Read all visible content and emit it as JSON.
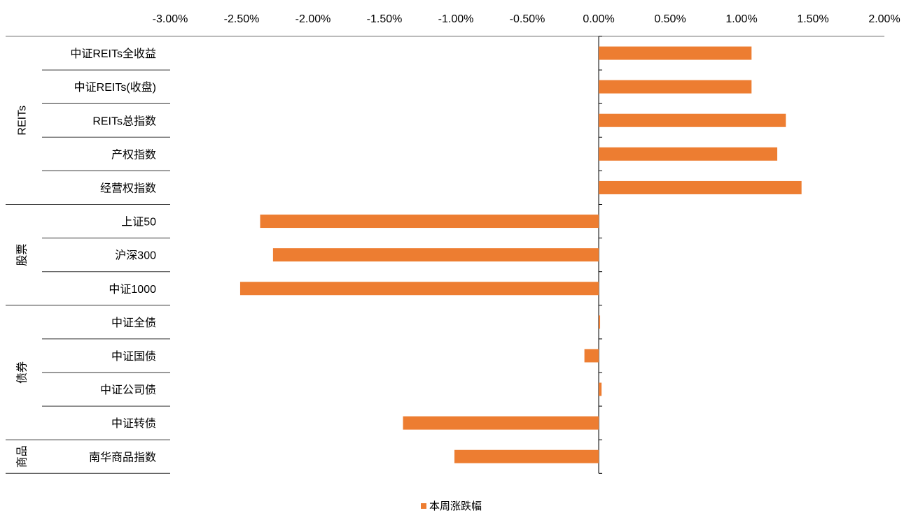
{
  "chart_data": {
    "type": "bar",
    "orientation": "horizontal",
    "x_ticks": [
      "-3.00%",
      "-2.50%",
      "-2.00%",
      "-1.50%",
      "-1.00%",
      "-0.50%",
      "0.00%",
      "0.50%",
      "1.00%",
      "1.50%",
      "2.00%"
    ],
    "xlim": [
      -3.0,
      2.0
    ],
    "x_axis_position": "top",
    "groups": [
      {
        "name": "REITs",
        "categories": [
          "中证REITs全收益",
          "中证REITs(收盘)",
          "REITs总指数",
          "产权指数",
          "经营权指数"
        ]
      },
      {
        "name": "股票",
        "categories": [
          "上证50",
          "沪深300",
          "中证1000"
        ]
      },
      {
        "name": "债券",
        "categories": [
          "中证全债",
          "中证国债",
          "中证公司债",
          "中证转债"
        ]
      },
      {
        "name": "商品",
        "categories": [
          "南华商品指数"
        ]
      }
    ],
    "series": [
      {
        "name": "本周涨跌幅",
        "values": [
          1.07,
          1.07,
          1.31,
          1.25,
          1.42,
          -2.37,
          -2.28,
          -2.51,
          0.01,
          -0.1,
          0.02,
          -1.37,
          -1.01
        ]
      }
    ],
    "colors": {
      "bar": "#ED7D31",
      "axis": "#000000"
    },
    "legend_position": "bottom-center",
    "grid": false
  }
}
